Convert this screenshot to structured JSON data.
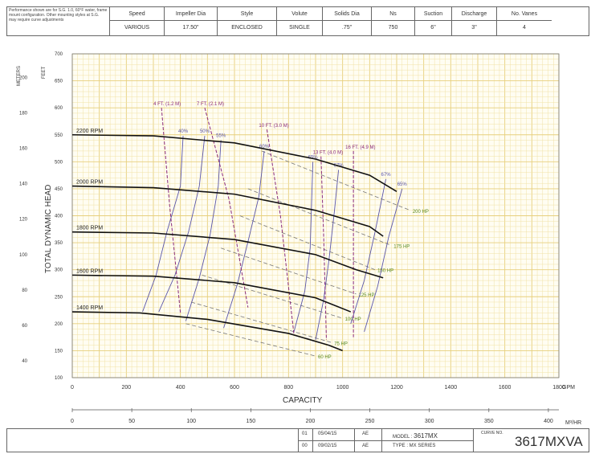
{
  "header": {
    "note": "Performance shown are for S.G. 1.0, 60°F water, frame mount configuration. Other mounting styles at S.G. may require curve adjustments",
    "columns": [
      {
        "label": "Speed",
        "value": "VARIOUS"
      },
      {
        "label": "Impeller Dia",
        "value": "17.50\""
      },
      {
        "label": "Style",
        "value": "ENCLOSED"
      },
      {
        "label": "Volute",
        "value": "SINGLE"
      },
      {
        "label": "Solids Dia",
        "value": ".75\""
      },
      {
        "label": "Ns",
        "value": "750"
      },
      {
        "label": "Suction",
        "value": "6\""
      },
      {
        "label": "Discharge",
        "value": "3\""
      },
      {
        "label": "No. Vanes",
        "value": "4"
      }
    ]
  },
  "title_block": {
    "rev1_no": "01",
    "rev1_date": "05/04/15",
    "rev1_by": "AE",
    "rev2_no": "00",
    "rev2_date": "09/02/15",
    "rev2_by": "AE",
    "model_label": "MODEL :",
    "model_value": "3617MX",
    "type_label": "TYPE : MX SERIES",
    "curve_no_label": "CURVE NO.",
    "curve_no_value": "3617MXVA"
  },
  "chart_data": {
    "type": "line",
    "xlabel": "CAPACITY",
    "ylabel": "TOTAL DYNAMIC HEAD",
    "x_unit": "GPM",
    "x2_unit": "M³/HR",
    "y_unit_left": "FEET",
    "y_unit_outer": "METERS",
    "xlim": [
      0,
      1800
    ],
    "ylim": [
      100,
      700
    ],
    "x_ticks": [
      0,
      200,
      400,
      600,
      800,
      1000,
      1200,
      1400,
      1600,
      1800
    ],
    "x2_ticks": [
      0,
      50,
      100,
      150,
      200,
      250,
      300,
      350,
      400
    ],
    "y_ticks": [
      100,
      150,
      200,
      250,
      300,
      350,
      400,
      450,
      500,
      550,
      600,
      650,
      700
    ],
    "meter_ticks": [
      40,
      60,
      80,
      100,
      120,
      140,
      160,
      180,
      200
    ],
    "grid": true,
    "speed_curves": [
      {
        "name": "2200 RPM",
        "x": [
          0,
          300,
          600,
          900,
          1100,
          1200
        ],
        "y": [
          550,
          548,
          535,
          505,
          475,
          445
        ]
      },
      {
        "name": "2000 RPM",
        "x": [
          0,
          300,
          600,
          900,
          1100,
          1150
        ],
        "y": [
          455,
          452,
          440,
          410,
          380,
          362
        ]
      },
      {
        "name": "1800 RPM",
        "x": [
          0,
          300,
          600,
          900,
          1050,
          1150
        ],
        "y": [
          370,
          368,
          356,
          328,
          300,
          285
        ]
      },
      {
        "name": "1600 RPM",
        "x": [
          0,
          300,
          600,
          900,
          1030
        ],
        "y": [
          290,
          288,
          276,
          248,
          222
        ]
      },
      {
        "name": "1400 RPM",
        "x": [
          0,
          250,
          500,
          800,
          950,
          1000
        ],
        "y": [
          222,
          220,
          208,
          182,
          160,
          150
        ]
      }
    ],
    "efficiency_curves": [
      {
        "name": "40%",
        "x": [
          260,
          310,
          350,
          400,
          410
        ],
        "y": [
          222,
          290,
          370,
          455,
          548
        ]
      },
      {
        "name": "50%",
        "x": [
          320,
          380,
          430,
          470,
          490
        ],
        "y": [
          222,
          290,
          370,
          455,
          548
        ]
      },
      {
        "name": "55%",
        "x": [
          420,
          470,
          510,
          540,
          550
        ],
        "y": [
          205,
          285,
          365,
          455,
          540
        ]
      },
      {
        "name": "60%",
        "x": [
          560,
          610,
          650,
          690,
          710
        ],
        "y": [
          192,
          272,
          352,
          435,
          520
        ]
      },
      {
        "name": "65%",
        "x": [
          820,
          860,
          880,
          890
        ],
        "y": [
          185,
          260,
          340,
          500
        ]
      },
      {
        "name": "67%",
        "x": [
          900,
          930,
          950,
          970,
          985
        ],
        "y": [
          170,
          245,
          320,
          410,
          485
        ]
      },
      {
        "name": "67%",
        "x": [
          1030,
          1080,
          1120,
          1160
        ],
        "y": [
          200,
          280,
          370,
          468
        ]
      },
      {
        "name": "65%",
        "x": [
          1080,
          1130,
          1170,
          1220
        ],
        "y": [
          185,
          270,
          360,
          450
        ]
      }
    ],
    "npsh_curves": [
      {
        "name": "4 FT. (1.2 M)",
        "x": [
          330,
          360,
          400
        ],
        "y": [
          600,
          420,
          220
        ]
      },
      {
        "name": "7 FT. (2.1 M)",
        "x": [
          490,
          580,
          650
        ],
        "y": [
          600,
          430,
          230
        ]
      },
      {
        "name": "10 FT. (3.0 M)",
        "x": [
          720,
          770,
          820
        ],
        "y": [
          560,
          400,
          180
        ]
      },
      {
        "name": "13 FT. (4.0 M)",
        "x": [
          920,
          930,
          940
        ],
        "y": [
          510,
          360,
          170
        ]
      },
      {
        "name": "16 FT. (4.9 M)",
        "x": [
          1040,
          1040,
          1040
        ],
        "y": [
          520,
          360,
          175
        ]
      }
    ],
    "horsepower_lines": [
      {
        "name": "200 HP",
        "x": [
          700,
          1250
        ],
        "y": [
          520,
          410
        ]
      },
      {
        "name": "175 HP",
        "x": [
          650,
          1180
        ],
        "y": [
          450,
          345
        ]
      },
      {
        "name": "150 HP",
        "x": [
          620,
          1120
        ],
        "y": [
          400,
          300
        ]
      },
      {
        "name": "125 HP",
        "x": [
          550,
          1050
        ],
        "y": [
          340,
          255
        ]
      },
      {
        "name": "100 HP",
        "x": [
          480,
          1000
        ],
        "y": [
          290,
          210
        ]
      },
      {
        "name": "75 HP",
        "x": [
          440,
          960
        ],
        "y": [
          240,
          165
        ]
      },
      {
        "name": "60 HP",
        "x": [
          420,
          900
        ],
        "y": [
          200,
          140
        ]
      }
    ],
    "colors": {
      "grid_minor": "#f1e2a6",
      "grid_major": "#e7cf7c",
      "speed": "#111111",
      "efficiency": "#5a55a8",
      "npsh": "#8a2a7a",
      "hp": "#5a8a20"
    }
  }
}
